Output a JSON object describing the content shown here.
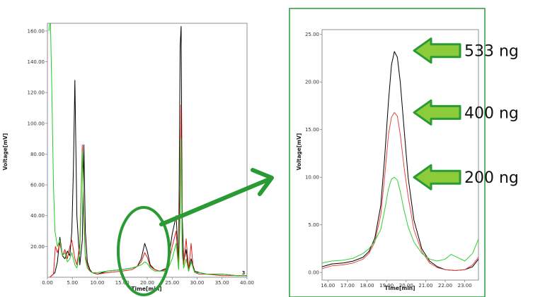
{
  "chart_data": [
    {
      "type": "line",
      "title": "",
      "xlabel": "Time[min]",
      "ylabel": "Voltage[mV]",
      "xlim": [
        0,
        40
      ],
      "ylim": [
        0,
        165
      ],
      "x_ticks": [
        "0.00",
        "5.00",
        "10.00",
        "15.00",
        "20.00",
        "25.00",
        "30.00",
        "35.00",
        "40.00"
      ],
      "y_ticks": [
        "20.00",
        "40.00",
        "60.00",
        "80.00",
        "100.00",
        "120.00",
        "140.00",
        "160.00"
      ],
      "corner_label": "3",
      "series": [
        {
          "color": "#000000",
          "x": [
            0.5,
            1.5,
            2.0,
            2.5,
            3.0,
            3.5,
            4.0,
            4.5,
            4.9,
            5.2,
            5.5,
            5.9,
            6.5,
            7.0,
            7.3,
            7.6,
            8.0,
            8.5,
            9.0,
            10,
            12,
            15,
            17,
            18,
            18.8,
            19.5,
            20.0,
            20.6,
            21.5,
            22.5,
            24,
            25,
            25.8,
            26.3,
            26.6,
            26.8,
            27.0,
            27.3,
            27.8,
            28.3,
            28.8,
            29.5,
            30.5,
            32,
            35,
            38,
            40
          ],
          "y": [
            0,
            3,
            10,
            26,
            14,
            12,
            17,
            14,
            30,
            70,
            128,
            40,
            8,
            24,
            86,
            30,
            10,
            5,
            3,
            2,
            4,
            5,
            6,
            7,
            12,
            22,
            17,
            8,
            5,
            4,
            6,
            28,
            40,
            8,
            150,
            163,
            40,
            10,
            18,
            4,
            12,
            4,
            3,
            2,
            2,
            1,
            1
          ]
        },
        {
          "color": "#e0201a",
          "x": [
            0.5,
            1.2,
            1.6,
            2.0,
            2.5,
            3.0,
            3.5,
            4.0,
            4.5,
            4.9,
            5.2,
            5.5,
            5.9,
            6.5,
            7.0,
            7.3,
            7.6,
            8.0,
            8.5,
            9.0,
            10,
            12,
            15,
            17,
            18,
            18.8,
            19.5,
            20.0,
            20.6,
            21.5,
            22.5,
            24,
            25,
            25.8,
            26.3,
            26.6,
            26.8,
            27.0,
            27.3,
            27.8,
            28.3,
            28.8,
            29.2,
            29.6,
            30.5,
            32,
            35,
            38,
            40
          ],
          "y": [
            0,
            2,
            20,
            16,
            22,
            14,
            18,
            12,
            20,
            24,
            18,
            12,
            8,
            22,
            86,
            40,
            14,
            8,
            4,
            3,
            2,
            3,
            4,
            5,
            7,
            10,
            16,
            13,
            7,
            5,
            4,
            5,
            20,
            30,
            6,
            60,
            112,
            20,
            8,
            25,
            5,
            22,
            6,
            3,
            2,
            2,
            1,
            1,
            1
          ]
        },
        {
          "color": "#22cc22",
          "x": [
            0.3,
            0.6,
            0.9,
            1.2,
            1.5,
            2.0,
            2.5,
            3.0,
            3.5,
            4.0,
            4.5,
            4.9,
            5.2,
            5.5,
            5.9,
            6.5,
            7.0,
            7.3,
            7.6,
            8.0,
            8.5,
            9.0,
            10,
            12,
            15,
            17,
            18,
            18.8,
            19.5,
            20.0,
            20.6,
            21.5,
            22.5,
            24,
            25,
            25.8,
            26.3,
            26.6,
            26.8,
            27.0,
            27.3,
            27.8,
            28.3,
            28.8,
            29.5,
            30.5,
            32,
            35,
            38,
            40
          ],
          "y": [
            160,
            168,
            120,
            60,
            30,
            20,
            24,
            14,
            16,
            10,
            12,
            16,
            12,
            8,
            6,
            16,
            82,
            35,
            12,
            6,
            4,
            3,
            3,
            4,
            5,
            6,
            7,
            8,
            10,
            9,
            6,
            4,
            4,
            4,
            12,
            22,
            5,
            40,
            90,
            15,
            6,
            12,
            4,
            10,
            3,
            3,
            2,
            2,
            1,
            1
          ]
        }
      ]
    },
    {
      "type": "line",
      "title": "",
      "xlabel": "Time[min]",
      "ylabel": "Voltage[mV]",
      "xlim": [
        15.7,
        23.7
      ],
      "ylim": [
        -0.8,
        25.5
      ],
      "x_ticks": [
        "16.00",
        "17.00",
        "18.00",
        "19.00",
        "20.00",
        "21.00",
        "22.00",
        "23.00"
      ],
      "y_ticks": [
        "0.00",
        "5.00",
        "10.00",
        "15.00",
        "20.00",
        "25.00"
      ],
      "series": [
        {
          "color": "#000000",
          "x": [
            15.7,
            16.2,
            16.8,
            17.3,
            17.8,
            18.1,
            18.4,
            18.7,
            18.9,
            19.1,
            19.25,
            19.4,
            19.55,
            19.7,
            19.9,
            20.1,
            20.4,
            20.8,
            21.2,
            21.6,
            22.0,
            22.5,
            23.0,
            23.4,
            23.7
          ],
          "y": [
            0.6,
            0.9,
            1.0,
            1.2,
            1.6,
            2.2,
            3.6,
            7.0,
            12.0,
            18.0,
            21.8,
            23.2,
            22.6,
            20.0,
            15.0,
            10.0,
            5.5,
            2.5,
            1.2,
            0.6,
            0.3,
            0.2,
            0.3,
            0.6,
            1.4
          ]
        },
        {
          "color": "#e8443c",
          "x": [
            15.7,
            16.2,
            16.8,
            17.3,
            17.8,
            18.1,
            18.4,
            18.7,
            18.9,
            19.1,
            19.25,
            19.4,
            19.55,
            19.7,
            19.9,
            20.1,
            20.4,
            20.8,
            21.2,
            21.6,
            22.0,
            22.5,
            23.0,
            23.4,
            23.7
          ],
          "y": [
            0.4,
            0.7,
            0.8,
            1.0,
            1.4,
            2.0,
            3.2,
            6.0,
            10.0,
            14.5,
            16.3,
            16.8,
            16.4,
            14.5,
            11.0,
            8.0,
            4.5,
            2.2,
            1.0,
            0.5,
            0.3,
            0.2,
            0.3,
            0.8,
            1.6
          ]
        },
        {
          "color": "#33d033",
          "x": [
            15.7,
            16.2,
            16.8,
            17.3,
            17.8,
            18.1,
            18.4,
            18.7,
            18.9,
            19.1,
            19.25,
            19.4,
            19.55,
            19.7,
            19.9,
            20.1,
            20.4,
            20.8,
            21.2,
            21.6,
            22.0,
            22.3,
            22.6,
            23.0,
            23.4,
            23.7
          ],
          "y": [
            1.0,
            1.2,
            1.3,
            1.5,
            2.0,
            2.5,
            3.3,
            4.5,
            6.5,
            8.8,
            9.8,
            10.0,
            9.7,
            8.5,
            6.5,
            4.8,
            3.2,
            2.0,
            1.4,
            1.2,
            1.4,
            1.9,
            1.6,
            1.2,
            2.0,
            3.5
          ]
        }
      ]
    }
  ],
  "annotations": [
    {
      "label": "533 ng",
      "level": 23.3
    },
    {
      "label": "400 ng",
      "level": 16.8
    },
    {
      "label": "200 ng",
      "level": 10.0
    }
  ],
  "colors": {
    "frame": "#2a9a34",
    "arrow_fill": "#8ccc3a",
    "arrow_stroke": "#2a9a34",
    "ellipse": "#2a9a34"
  }
}
